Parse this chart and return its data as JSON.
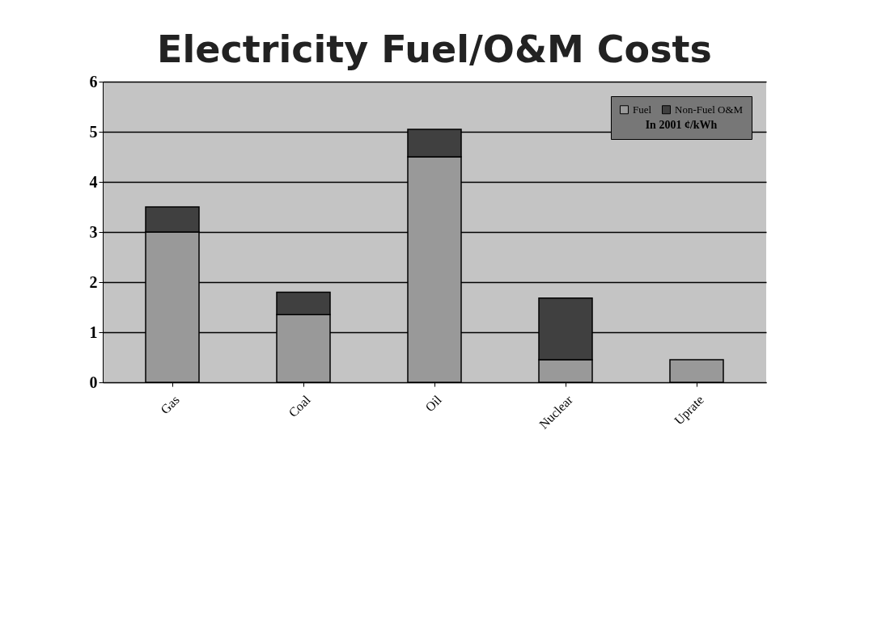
{
  "chart_data": {
    "type": "bar",
    "title": "Electricity Fuel/O&M Costs",
    "legend_title": "In 2001 ¢/kWh",
    "categories": [
      "Gas",
      "Coal",
      "Oil",
      "Nuclear",
      "Uprate"
    ],
    "series": [
      {
        "name": "Fuel",
        "color": "#999999",
        "values": [
          3.0,
          1.35,
          4.5,
          0.45,
          0.45
        ]
      },
      {
        "name": "Non-Fuel O&M",
        "color": "#404040",
        "values": [
          0.5,
          0.45,
          0.55,
          1.23,
          null
        ]
      }
    ],
    "stacked": true,
    "ylim": [
      0,
      6
    ],
    "yticks": [
      0,
      1,
      2,
      3,
      4,
      5,
      6
    ],
    "grid": "y",
    "legend": "top right"
  }
}
